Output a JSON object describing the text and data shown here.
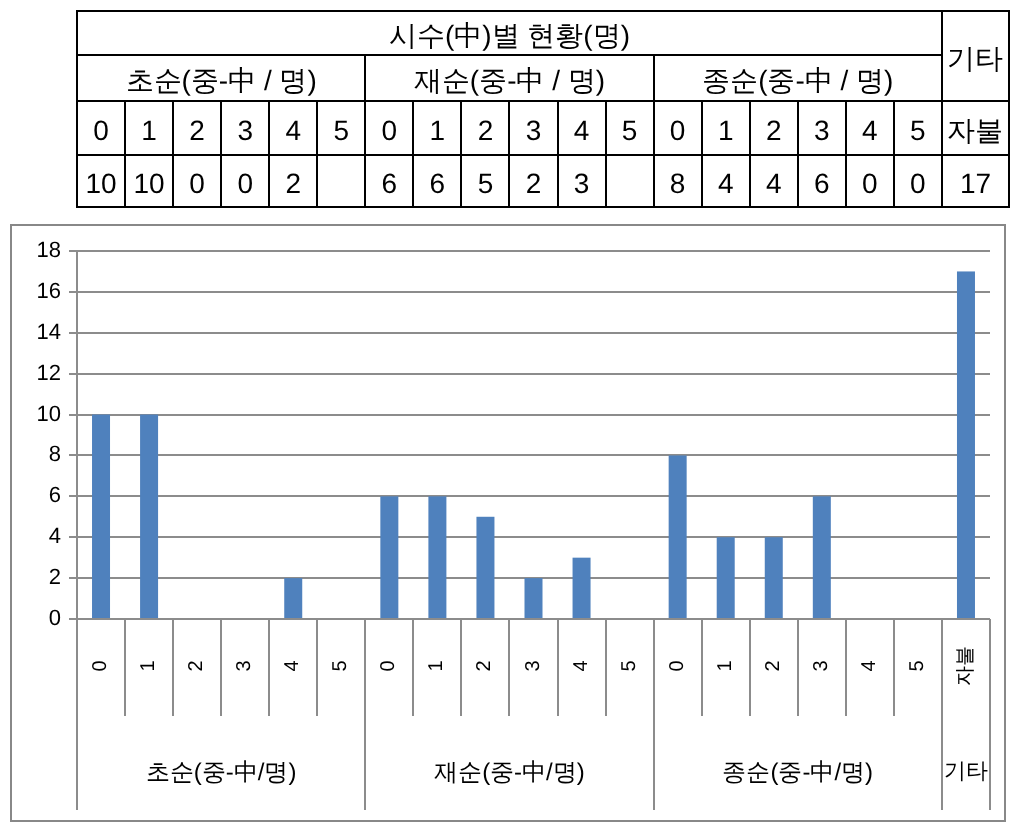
{
  "chart_data": {
    "type": "bar",
    "title": "시수(中)별 현황(명)",
    "categories": [
      "0",
      "1",
      "2",
      "3",
      "4",
      "5",
      "0",
      "1",
      "2",
      "3",
      "4",
      "5",
      "0",
      "1",
      "2",
      "3",
      "4",
      "5",
      "자불"
    ],
    "values": [
      10,
      10,
      0,
      0,
      2,
      null,
      6,
      6,
      5,
      2,
      3,
      null,
      8,
      4,
      4,
      6,
      0,
      0,
      17
    ],
    "value_labels": [
      "10",
      "10",
      "0",
      "0",
      "2",
      null,
      "6",
      "6",
      "5",
      "2",
      "3",
      null,
      "8",
      "4",
      "4",
      "6",
      "0",
      "0",
      "17"
    ],
    "color": "#4f81bd",
    "ylim": [
      0,
      18
    ],
    "yticks": [
      0,
      2,
      4,
      6,
      8,
      10,
      12,
      14,
      16,
      18
    ],
    "grid": "y",
    "annotations": [
      "초순(중-中 / 명)",
      "재순(중-中 / 명)",
      "종순(중-中 / 명)",
      "기타",
      "초순(중-中/명)",
      "재순(중-中/명)",
      "종순(중-中/명)",
      "기타"
    ]
  }
}
